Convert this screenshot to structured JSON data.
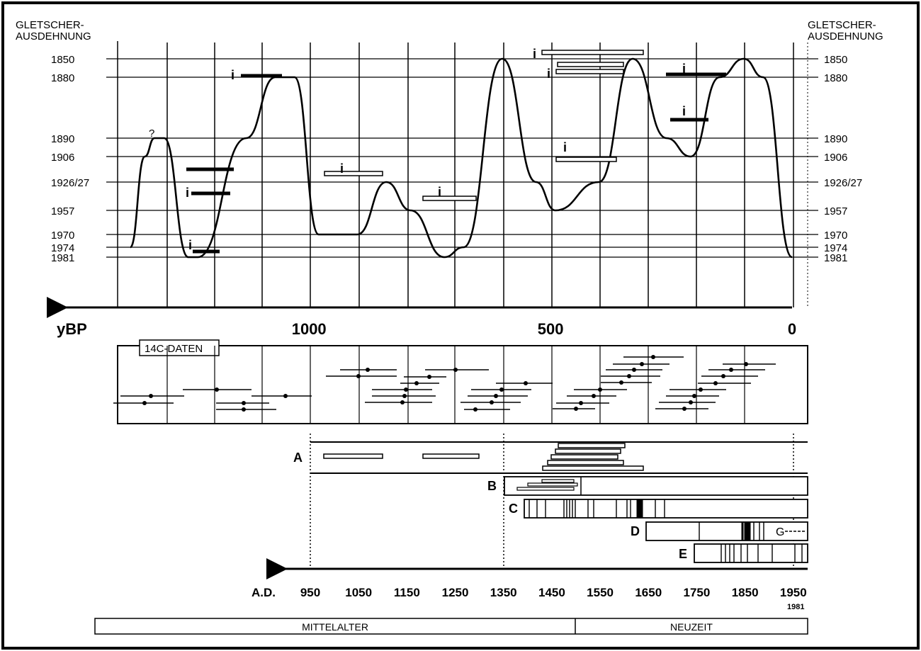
{
  "header": {
    "left_title_line1": "GLETSCHER-",
    "left_title_line2": "AUSDEHNUNG",
    "right_title_line1": "GLETSCHER-",
    "right_title_line2": "AUSDEHNUNG"
  },
  "colors": {
    "ink": "#000000",
    "paper": "#ffffff"
  },
  "chart_data": {
    "type": "line",
    "ybp_axis": {
      "label": "yBP",
      "ticks": [
        {
          "label": "1000",
          "value": 1000
        },
        {
          "label": "500",
          "value": 500
        },
        {
          "label": "0",
          "value": 0
        }
      ]
    },
    "ad_axis": {
      "label": "A.D.",
      "ticks": [
        "950",
        "1050",
        "1150",
        "1250",
        "1350",
        "1450",
        "1550",
        "1650",
        "1750",
        "1850",
        "1950"
      ],
      "end_label": "1981"
    },
    "extent_levels": [
      "1850",
      "1880",
      "1890",
      "1906",
      "1926/27",
      "1957",
      "1970",
      "1974",
      "1981"
    ],
    "right_extent_levels": [
      "1850",
      "1880",
      "1890",
      "1906",
      "1926/27",
      "1957",
      "1970",
      "1974",
      "1981"
    ],
    "glacier_curve": {
      "unknown_marker": "?",
      "points": [
        {
          "ybp": 1370,
          "level": "1974"
        },
        {
          "ybp": 1340,
          "level": "1906"
        },
        {
          "ybp": 1320,
          "level": "1890"
        },
        {
          "ybp": 1300,
          "level": "1890"
        },
        {
          "ybp": 1250,
          "level": "1981"
        },
        {
          "ybp": 1230,
          "level": "1981"
        },
        {
          "ybp": 1130,
          "level": "1890"
        },
        {
          "ybp": 1070,
          "level": "1880"
        },
        {
          "ybp": 1030,
          "level": "1880"
        },
        {
          "ybp": 980,
          "level": "1970"
        },
        {
          "ybp": 900,
          "level": "1970"
        },
        {
          "ybp": 840,
          "level": "1926/27"
        },
        {
          "ybp": 790,
          "level": "1957"
        },
        {
          "ybp": 720,
          "level": "1981"
        },
        {
          "ybp": 680,
          "level": "1974"
        },
        {
          "ybp": 600,
          "level": "1850"
        },
        {
          "ybp": 530,
          "level": "1926/27"
        },
        {
          "ybp": 490,
          "level": "1957"
        },
        {
          "ybp": 400,
          "level": "1926/27"
        },
        {
          "ybp": 330,
          "level": "1850"
        },
        {
          "ybp": 260,
          "level": "1890"
        },
        {
          "ybp": 210,
          "level": "1906"
        },
        {
          "ybp": 150,
          "level": "1880"
        },
        {
          "ybp": 100,
          "level": "1850"
        },
        {
          "ybp": 60,
          "level": "1880"
        },
        {
          "ybp": 0,
          "level": "1981"
        }
      ]
    },
    "evidence_marker": "i",
    "c14_panel_label": "14C-DATEN",
    "historical_rows": [
      "A",
      "B",
      "C",
      "D",
      "E"
    ],
    "row_d_extra_label": "G",
    "periods": [
      "MITTELALTER",
      "NEUZEIT"
    ]
  }
}
